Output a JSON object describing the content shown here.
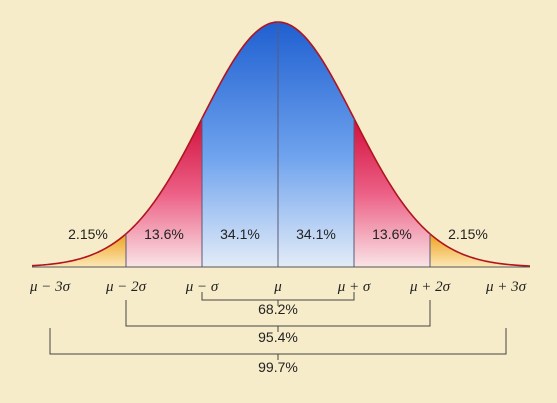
{
  "chart_data": {
    "type": "area",
    "distribution": "normal",
    "x_range_sigma": [
      -3.3,
      3.3
    ],
    "regions": [
      {
        "from": -3,
        "to": -2,
        "label": "2.15%",
        "value": 2.15,
        "color": "#f2a91c"
      },
      {
        "from": -2,
        "to": -1,
        "label": "13.6%",
        "value": 13.6,
        "color": "#d81f4a"
      },
      {
        "from": -1,
        "to": 0,
        "label": "34.1%",
        "value": 34.1,
        "color": "#2f71d8"
      },
      {
        "from": 0,
        "to": 1,
        "label": "34.1%",
        "value": 34.1,
        "color": "#2f71d8"
      },
      {
        "from": 1,
        "to": 2,
        "label": "13.6%",
        "value": 13.6,
        "color": "#d81f4a"
      },
      {
        "from": 2,
        "to": 3,
        "label": "2.15%",
        "value": 2.15,
        "color": "#f2a91c"
      }
    ],
    "x_ticks": [
      {
        "sigma": -3,
        "label": "μ − 3σ"
      },
      {
        "sigma": -2,
        "label": "μ − 2σ"
      },
      {
        "sigma": -1,
        "label": "μ − σ"
      },
      {
        "sigma": 0,
        "label": "μ"
      },
      {
        "sigma": 1,
        "label": "μ + σ"
      },
      {
        "sigma": 2,
        "label": "μ + 2σ"
      },
      {
        "sigma": 3,
        "label": "μ + 3σ"
      }
    ],
    "brackets": [
      {
        "from": -1,
        "to": 1,
        "label": "68.2%",
        "value": 68.2
      },
      {
        "from": -2,
        "to": 2,
        "label": "95.4%",
        "value": 95.4
      },
      {
        "from": -3,
        "to": 3,
        "label": "99.7%",
        "value": 99.7
      }
    ]
  }
}
